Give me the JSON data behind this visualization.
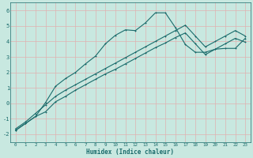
{
  "xlabel": "Humidex (Indice chaleur)",
  "bg_color": "#c8e8e0",
  "grid_color": "#e0b0b0",
  "line_color": "#1a6b6b",
  "xlim": [
    -0.5,
    23.5
  ],
  "ylim": [
    -2.5,
    6.5
  ],
  "yticks": [
    -2,
    -1,
    0,
    1,
    2,
    3,
    4,
    5,
    6
  ],
  "xticks": [
    0,
    1,
    2,
    3,
    4,
    5,
    6,
    7,
    8,
    9,
    10,
    11,
    12,
    13,
    14,
    15,
    16,
    17,
    18,
    19,
    20,
    21,
    22,
    23
  ],
  "curve1_x": [
    0,
    1,
    2,
    3,
    4,
    5,
    6,
    7,
    8,
    9,
    10,
    11,
    12,
    13,
    14,
    15,
    16,
    17,
    18,
    19,
    20,
    21,
    22,
    23
  ],
  "curve1_y": [
    -1.75,
    -1.3,
    -0.85,
    -0.55,
    0.1,
    0.45,
    0.85,
    1.2,
    1.55,
    1.9,
    2.2,
    2.55,
    2.9,
    3.25,
    3.6,
    3.9,
    4.25,
    4.55,
    3.85,
    3.15,
    3.5,
    3.85,
    4.2,
    3.95
  ],
  "curve2_x": [
    0,
    1,
    2,
    3,
    4,
    5,
    6,
    7,
    8,
    9,
    10,
    11,
    12,
    13,
    14,
    15,
    16,
    17,
    18,
    19,
    20,
    21,
    22,
    23
  ],
  "curve2_y": [
    -1.65,
    -1.2,
    -0.65,
    -0.1,
    0.45,
    0.85,
    1.2,
    1.55,
    1.9,
    2.25,
    2.6,
    2.95,
    3.3,
    3.65,
    4.0,
    4.35,
    4.7,
    5.05,
    4.35,
    3.65,
    4.0,
    4.35,
    4.7,
    4.35
  ],
  "curve3_x": [
    0,
    1,
    2,
    3,
    4,
    5,
    6,
    7,
    8,
    9,
    10,
    11,
    12,
    13,
    14,
    15,
    16,
    17,
    18,
    19,
    20,
    21,
    22,
    23
  ],
  "curve3_y": [
    -1.75,
    -1.3,
    -0.85,
    0.05,
    1.1,
    1.6,
    2.0,
    2.55,
    3.05,
    3.85,
    4.4,
    4.75,
    4.7,
    5.2,
    5.85,
    5.85,
    4.9,
    3.8,
    3.3,
    3.3,
    3.5,
    3.55,
    3.55,
    4.2
  ]
}
